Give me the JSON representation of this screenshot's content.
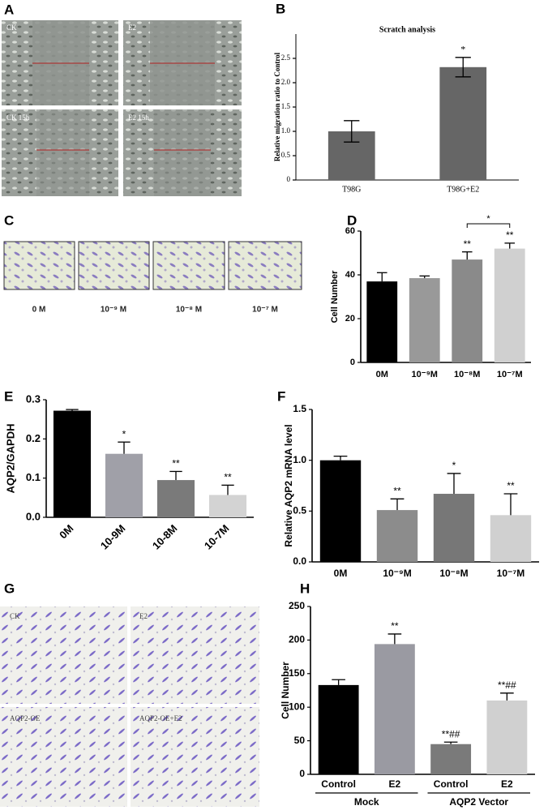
{
  "panel_labels": [
    "A",
    "B",
    "C",
    "D",
    "E",
    "F",
    "G",
    "H"
  ],
  "image_labels": {
    "A": [
      "CK",
      "E2",
      "CK 15h",
      "E2 15h"
    ],
    "C": [
      "0 M",
      "10⁻⁹ M",
      "10⁻⁸ M",
      "10⁻⁷ M"
    ],
    "G": [
      "CK",
      "E2",
      "AQP2-OE",
      "AQP2-OE+E2"
    ]
  },
  "chart_data": [
    {
      "type": "bar",
      "title": "Scratch analysis",
      "y_label": "Relative migration ratio to Control",
      "categories": [
        "T98G",
        "T98G+E2"
      ],
      "values": [
        1.0,
        2.32
      ],
      "errors": [
        0.22,
        0.2
      ],
      "colors": [
        "#666666",
        "#666666"
      ],
      "annotations": [
        null,
        "*"
      ],
      "ylim": [
        0,
        3.0
      ],
      "yticks": [
        0,
        0.5,
        {
          "value": 1,
          "label": "1.0"
        },
        1.5,
        {
          "value": 2,
          "label": "2.0"
        },
        2.5
      ]
    },
    {
      "type": "bar",
      "y_label": "Cell Number",
      "categories": [
        "0M",
        "10⁻⁹M",
        "10⁻⁸M",
        "10⁻⁷M"
      ],
      "values": [
        37,
        38.5,
        47,
        52
      ],
      "errors": [
        4,
        1,
        3.5,
        2.5
      ],
      "colors": [
        "#000000",
        "#999999",
        "#8a8a8a",
        "#d0d0d0"
      ],
      "annotations": [
        null,
        null,
        "**",
        "**"
      ],
      "bracket_label": "*",
      "ylim": [
        0,
        60
      ],
      "yticks": [
        0,
        20,
        40,
        60
      ]
    },
    {
      "type": "bar",
      "y_label": "AQP2/GAPDH",
      "categories": [
        "0M",
        "10-9M",
        "10-8M",
        "10-7M"
      ],
      "values": [
        0.272,
        0.162,
        0.095,
        0.057
      ],
      "errors": [
        0.003,
        0.03,
        0.022,
        0.025
      ],
      "colors": [
        "#000000",
        "#a0a0a8",
        "#7a7a7a",
        "#d3d3d3"
      ],
      "annotations": [
        null,
        "*",
        "**",
        "**"
      ],
      "ylim": [
        0,
        0.3
      ],
      "yticks": [
        {
          "value": 0,
          "label": "0.0"
        },
        0.1,
        0.2,
        0.3
      ]
    },
    {
      "type": "bar",
      "y_label": "Relative AQP2 mRNA level",
      "categories": [
        "0M",
        "10⁻⁹M",
        "10⁻⁸M",
        "10⁻⁷M"
      ],
      "values": [
        1.0,
        0.51,
        0.67,
        0.46
      ],
      "errors": [
        0.04,
        0.11,
        0.2,
        0.21
      ],
      "colors": [
        "#000000",
        "#8c8c8c",
        "#777777",
        "#d0d0d0"
      ],
      "annotations": [
        null,
        "**",
        "*",
        "**"
      ],
      "ylim": [
        0,
        1.5
      ],
      "yticks": [
        {
          "value": 0,
          "label": "0.0"
        },
        0.5,
        {
          "value": 1,
          "label": "1.0"
        },
        1.5
      ]
    },
    {
      "type": "bar",
      "y_label": "Cell Number",
      "categories": [
        "Control",
        "E2",
        "Control",
        "E2"
      ],
      "groups": [
        "Mock",
        "AQP2 Vector"
      ],
      "values": [
        133,
        194,
        45,
        110
      ],
      "errors": [
        8,
        15,
        3,
        11
      ],
      "colors": [
        "#000000",
        "#9a9aa2",
        "#7a7a7a",
        "#d0d0d0"
      ],
      "annotations": [
        null,
        "**",
        "**##",
        "**##"
      ],
      "ylim": [
        0,
        250
      ],
      "yticks": [
        0,
        50,
        100,
        150,
        200,
        250
      ]
    }
  ]
}
